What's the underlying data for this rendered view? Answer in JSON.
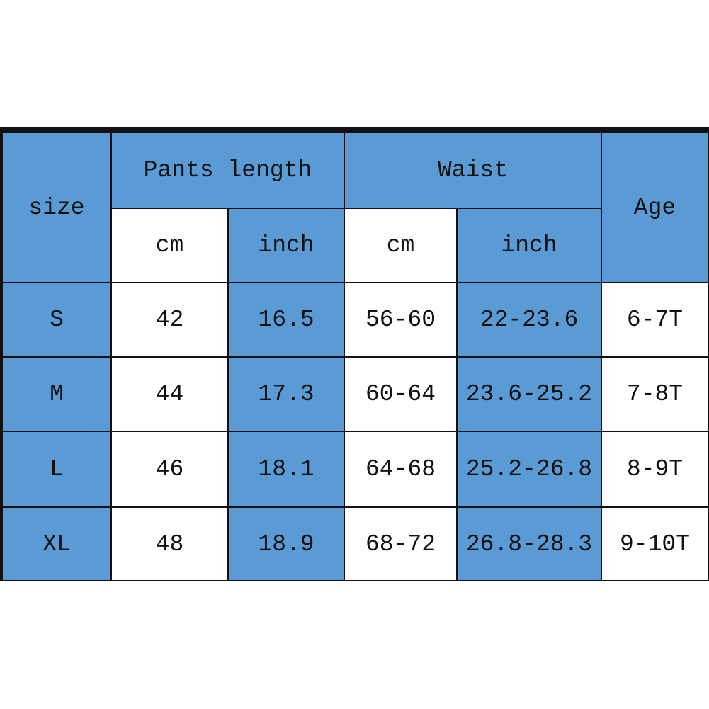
{
  "colors": {
    "header_blue": "#5b9bd5",
    "white": "#ffffff",
    "border": "#111111"
  },
  "headers": {
    "size": "size",
    "pants_length": "Pants length",
    "waist": "Waist",
    "age": "Age",
    "cm": "cm",
    "inch": "inch"
  },
  "rows": [
    {
      "size": "S",
      "pants_cm": "42",
      "pants_inch": "16.5",
      "waist_cm": "56-60",
      "waist_inch": "22-23.6",
      "age": "6-7T"
    },
    {
      "size": "M",
      "pants_cm": "44",
      "pants_inch": "17.3",
      "waist_cm": "60-64",
      "waist_inch": "23.6-25.2",
      "age": "7-8T"
    },
    {
      "size": "L",
      "pants_cm": "46",
      "pants_inch": "18.1",
      "waist_cm": "64-68",
      "waist_inch": "25.2-26.8",
      "age": "8-9T"
    },
    {
      "size": "XL",
      "pants_cm": "48",
      "pants_inch": "18.9",
      "waist_cm": "68-72",
      "waist_inch": "26.8-28.3",
      "age": "9-10T"
    }
  ]
}
